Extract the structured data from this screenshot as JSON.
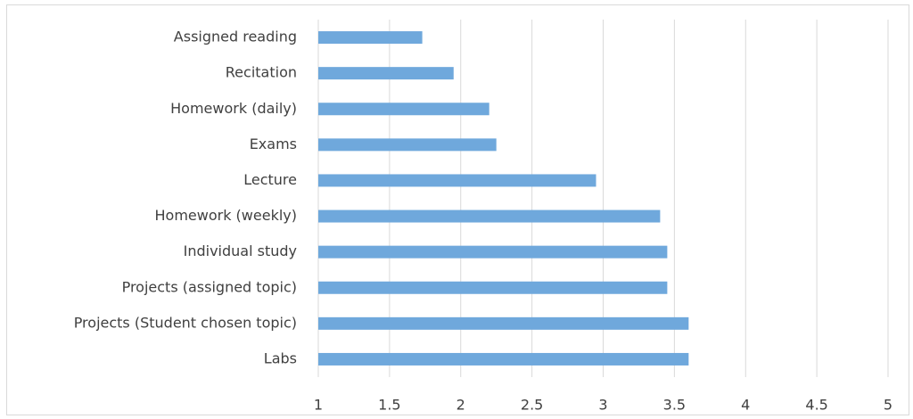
{
  "chart_data": {
    "type": "bar",
    "orientation": "horizontal",
    "categories": [
      "Assigned reading",
      "Recitation",
      "Homework (daily)",
      "Exams",
      "Lecture",
      "Homework (weekly)",
      "Individual study",
      "Projects (assigned topic)",
      "Projects (Student chosen topic)",
      "Labs"
    ],
    "values": [
      1.73,
      1.95,
      2.2,
      2.25,
      2.95,
      3.4,
      3.45,
      3.45,
      3.6,
      3.6
    ],
    "color": "#6fa8dc",
    "xlim": [
      1,
      5
    ],
    "xticks": [
      1,
      1.5,
      2,
      2.5,
      3,
      3.5,
      4,
      4.5,
      5
    ],
    "grid": true
  }
}
